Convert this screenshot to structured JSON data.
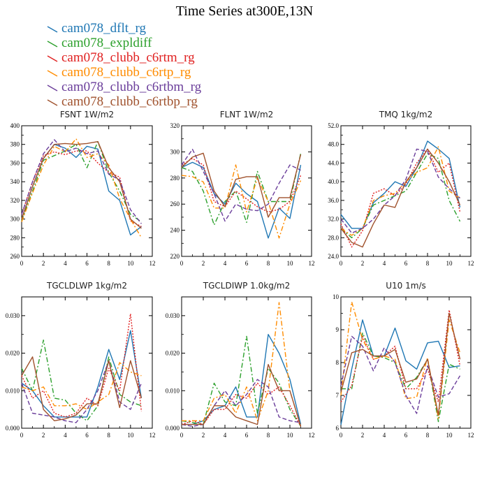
{
  "title": "Time Series at300E,13N",
  "legend": [
    {
      "label": "cam078_dflt_rg",
      "color": "#1f77b4",
      "dash": "solid"
    },
    {
      "label": "cam078_expldiff",
      "color": "#2ca02c",
      "dash": "dashdot"
    },
    {
      "label": "cam078_clubb_c6rtm_rg",
      "color": "#e02020",
      "dash": "dotted"
    },
    {
      "label": "cam078_clubb_c6rtp_rg",
      "color": "#ff8c00",
      "dash": "dashdot"
    },
    {
      "label": "cam078_clubb_c6rtbm_rg",
      "color": "#6a3d9a",
      "dash": "dashed"
    },
    {
      "label": "cam078_clubb_c6rtbp_rg",
      "color": "#a0522d",
      "dash": "solid"
    }
  ],
  "chart_data": [
    {
      "type": "line",
      "title": "FSNT  1W/m2",
      "x": [
        0,
        1,
        2,
        3,
        4,
        5,
        6,
        7,
        8,
        9,
        10,
        11
      ],
      "xlim": [
        0,
        12
      ],
      "xticks": [
        "0",
        "2",
        "4",
        "6",
        "8",
        "10",
        "12"
      ],
      "ylim": [
        260,
        400
      ],
      "yticks": [
        "260",
        "280",
        "300",
        "320",
        "340",
        "360",
        "380",
        "400"
      ],
      "series": [
        {
          "name": "cam078_dflt_rg",
          "values": [
            300,
            335,
            365,
            380,
            376,
            366,
            378,
            375,
            330,
            320,
            283,
            292
          ]
        },
        {
          "name": "cam078_expldiff",
          "values": [
            298,
            330,
            363,
            368,
            373,
            380,
            355,
            383,
            350,
            330,
            305,
            297
          ]
        },
        {
          "name": "cam078_clubb_c6rtm_rg",
          "values": [
            305,
            340,
            368,
            372,
            369,
            373,
            373,
            360,
            350,
            345,
            298,
            292
          ]
        },
        {
          "name": "cam078_clubb_c6rtp_rg",
          "values": [
            297,
            328,
            358,
            378,
            372,
            386,
            366,
            370,
            358,
            322,
            300,
            280
          ]
        },
        {
          "name": "cam078_clubb_c6rtbm_rg",
          "values": [
            305,
            340,
            370,
            385,
            372,
            376,
            370,
            373,
            348,
            342,
            310,
            295
          ]
        },
        {
          "name": "cam078_clubb_c6rtbp_rg",
          "values": [
            300,
            335,
            365,
            380,
            381,
            380,
            381,
            383,
            355,
            340,
            300,
            290
          ]
        }
      ]
    },
    {
      "type": "line",
      "title": "FLNT  1W/m2",
      "x": [
        0,
        1,
        2,
        3,
        4,
        5,
        6,
        7,
        8,
        9,
        10,
        11
      ],
      "xlim": [
        0,
        12
      ],
      "xticks": [
        "0",
        "2",
        "4",
        "6",
        "8",
        "10",
        "12"
      ],
      "ylim": [
        220,
        320
      ],
      "yticks": [
        "220",
        "240",
        "260",
        "280",
        "300",
        "320"
      ],
      "series": [
        {
          "name": "cam078_dflt_rg",
          "values": [
            288,
            292,
            288,
            268,
            260,
            276,
            268,
            262,
            234,
            257,
            249,
            290
          ]
        },
        {
          "name": "cam078_expldiff",
          "values": [
            288,
            285,
            270,
            244,
            262,
            270,
            246,
            285,
            262,
            262,
            262,
            299
          ]
        },
        {
          "name": "cam078_clubb_c6rtm_rg",
          "values": [
            290,
            295,
            290,
            262,
            258,
            270,
            264,
            258,
            254,
            256,
            262,
            282
          ]
        },
        {
          "name": "cam078_clubb_c6rtp_rg",
          "values": [
            282,
            281,
            277,
            257,
            257,
            290,
            254,
            280,
            262,
            234,
            260,
            278
          ]
        },
        {
          "name": "cam078_clubb_c6rtbm_rg",
          "values": [
            290,
            302,
            285,
            268,
            247,
            260,
            256,
            255,
            260,
            276,
            290,
            286
          ]
        },
        {
          "name": "cam078_clubb_c6rtbp_rg",
          "values": [
            288,
            296,
            299,
            270,
            258,
            279,
            281,
            281,
            250,
            265,
            265,
            298
          ]
        }
      ]
    },
    {
      "type": "line",
      "title": "TMQ  1kg/m2",
      "x": [
        0,
        1,
        2,
        3,
        4,
        5,
        6,
        7,
        8,
        9,
        10,
        11
      ],
      "xlim": [
        0,
        12
      ],
      "xticks": [
        "0",
        "2",
        "4",
        "6",
        "8",
        "10",
        "12"
      ],
      "ylim": [
        24,
        52
      ],
      "yticks": [
        "24.0",
        "28.0",
        "32.0",
        "36.0",
        "40.0",
        "44.0",
        "48.0",
        "52.0"
      ],
      "series": [
        {
          "name": "cam078_dflt_rg",
          "values": [
            33,
            30,
            30,
            35.5,
            37.5,
            40,
            39,
            43,
            48.7,
            47,
            45,
            34.5
          ]
        },
        {
          "name": "cam078_expldiff",
          "values": [
            30,
            28,
            30,
            35,
            36,
            37,
            38,
            42,
            46,
            45,
            36,
            31.5
          ]
        },
        {
          "name": "cam078_clubb_c6rtm_rg",
          "values": [
            31,
            26,
            29.5,
            37.5,
            38.5,
            37,
            39.5,
            44,
            47,
            42,
            44,
            33.5
          ]
        },
        {
          "name": "cam078_clubb_c6rtp_rg",
          "values": [
            30,
            28.5,
            30,
            36,
            37,
            37.5,
            40,
            42,
            43,
            47.5,
            38,
            36.5
          ]
        },
        {
          "name": "cam078_clubb_c6rtbm_rg",
          "values": [
            32,
            29,
            30,
            32,
            35,
            37,
            40.5,
            47,
            46.5,
            41,
            38.5,
            36.5
          ]
        },
        {
          "name": "cam078_clubb_c6rtbp_rg",
          "values": [
            30,
            27,
            26,
            31,
            35,
            34.5,
            40,
            43,
            47,
            44,
            40,
            35
          ]
        }
      ]
    },
    {
      "type": "line",
      "title": "TGCLDLWP  1kg/m2",
      "x": [
        0,
        1,
        2,
        3,
        4,
        5,
        6,
        7,
        8,
        9,
        10,
        11
      ],
      "xlim": [
        0,
        12
      ],
      "xticks": [
        "0",
        "2",
        "4",
        "6",
        "8",
        "10",
        "12"
      ],
      "ylim": [
        0,
        0.035
      ],
      "yticks": [
        "0.000",
        "0.010",
        "0.020",
        "0.030"
      ],
      "series": [
        {
          "name": "cam078_dflt_rg",
          "values": [
            0.012,
            0.01,
            0.006,
            0.003,
            0.003,
            0.003,
            0.003,
            0.011,
            0.021,
            0.013,
            0.026,
            0.008
          ]
        },
        {
          "name": "cam078_expldiff",
          "values": [
            0.016,
            0.01,
            0.0235,
            0.008,
            0.0075,
            0.004,
            0.002,
            0.006,
            0.019,
            0.009,
            0.007,
            0.006
          ]
        },
        {
          "name": "cam078_clubb_c6rtm_rg",
          "values": [
            0.014,
            0.008,
            0.01,
            0.004,
            0.003,
            0.004,
            0.008,
            0.006,
            0.016,
            0.01,
            0.0305,
            0.0045
          ]
        },
        {
          "name": "cam078_clubb_c6rtp_rg",
          "values": [
            0.011,
            0.01,
            0.011,
            0.006,
            0.006,
            0.0065,
            0.005,
            0.007,
            0.009,
            0.0175,
            0.015,
            0.014
          ]
        },
        {
          "name": "cam078_clubb_c6rtbm_rg",
          "values": [
            0.012,
            0.004,
            0.0035,
            0.003,
            0.002,
            0.0015,
            0.005,
            0.01,
            0.018,
            0.007,
            0.005,
            0.012
          ]
        },
        {
          "name": "cam078_clubb_c6rtbp_rg",
          "values": [
            0.014,
            0.019,
            0.005,
            0.002,
            0.0025,
            0.0035,
            0.0065,
            0.0065,
            0.018,
            0.0055,
            0.018,
            0.008
          ]
        }
      ]
    },
    {
      "type": "line",
      "title": "TGCLDIWP  1.0kg/m2",
      "x": [
        0,
        1,
        2,
        3,
        4,
        5,
        6,
        7,
        8,
        9,
        10,
        11
      ],
      "xlim": [
        0,
        12
      ],
      "xticks": [
        "0",
        "2",
        "4",
        "6",
        "8",
        "10",
        "12"
      ],
      "ylim": [
        0,
        0.035
      ],
      "yticks": [
        "0.000",
        "0.010",
        "0.020",
        "0.030"
      ],
      "series": [
        {
          "name": "cam078_dflt_rg",
          "values": [
            0.001,
            0.001,
            0.002,
            0.005,
            0.006,
            0.011,
            0.003,
            0.003,
            0.025,
            0.02,
            0.013,
            0.001
          ]
        },
        {
          "name": "cam078_expldiff",
          "values": [
            0.002,
            0.0015,
            0.001,
            0.012,
            0.007,
            0.006,
            0.0245,
            0.004,
            0.016,
            0.012,
            0.005,
            0.0005
          ]
        },
        {
          "name": "cam078_clubb_c6rtm_rg",
          "values": [
            0.001,
            0.002,
            0.001,
            0.005,
            0.005,
            0.009,
            0.008,
            0.012,
            0.009,
            0.011,
            0.006,
            0.0005
          ]
        },
        {
          "name": "cam078_clubb_c6rtp_rg",
          "values": [
            0.002,
            0.002,
            0.002,
            0.008,
            0.009,
            0.004,
            0.011,
            0.002,
            0.01,
            0.0335,
            0.01,
            0.0005
          ]
        },
        {
          "name": "cam078_clubb_c6rtbm_rg",
          "values": [
            0.001,
            0.0005,
            0.001,
            0.006,
            0.01,
            0.006,
            0.009,
            0.013,
            0.011,
            0.003,
            0.002,
            0.0015
          ]
        },
        {
          "name": "cam078_clubb_c6rtbp_rg",
          "values": [
            0.001,
            0.001,
            0.001,
            0.006,
            0.006,
            0.003,
            0.002,
            0.001,
            0.017,
            0.01,
            0.01,
            0.0005
          ]
        }
      ]
    },
    {
      "type": "line",
      "title": "U10  1m/s",
      "x": [
        0,
        1,
        2,
        3,
        4,
        5,
        6,
        7,
        8,
        9,
        10,
        11
      ],
      "xlim": [
        0,
        12
      ],
      "xticks": [
        "0",
        "2",
        "4",
        "6",
        "8",
        "10",
        "12"
      ],
      "ylim": [
        6,
        10
      ],
      "yticks": [
        "6",
        "7",
        "8",
        "9",
        "10"
      ],
      "series": [
        {
          "name": "cam078_dflt_rg",
          "values": [
            6.1,
            7.8,
            9.3,
            8.2,
            8.2,
            9.05,
            8.05,
            7.8,
            8.6,
            8.65,
            7.85,
            7.9
          ]
        },
        {
          "name": "cam078_expldiff",
          "values": [
            7.2,
            7.2,
            8.9,
            8.2,
            8.15,
            8.0,
            7.2,
            7.55,
            8.1,
            6.2,
            7.95,
            7.8
          ]
        },
        {
          "name": "cam078_clubb_c6rtm_rg",
          "values": [
            6.8,
            7.3,
            8.8,
            8.1,
            8.2,
            8.5,
            7.2,
            7.2,
            7.8,
            6.8,
            9.6,
            7.9
          ]
        },
        {
          "name": "cam078_clubb_c6rtp_rg",
          "values": [
            7.0,
            9.85,
            8.7,
            8.1,
            8.2,
            8.1,
            6.9,
            6.95,
            8.15,
            6.3,
            9.3,
            8.3
          ]
        },
        {
          "name": "cam078_clubb_c6rtbm_rg",
          "values": [
            7.3,
            8.8,
            8.5,
            7.75,
            8.45,
            8.0,
            7.0,
            6.45,
            7.9,
            6.95,
            7.05,
            7.6
          ]
        },
        {
          "name": "cam078_clubb_c6rtbp_rg",
          "values": [
            7.1,
            8.3,
            8.4,
            8.2,
            8.2,
            8.4,
            7.4,
            7.5,
            8.1,
            6.4,
            9.5,
            8.1
          ]
        }
      ]
    }
  ]
}
